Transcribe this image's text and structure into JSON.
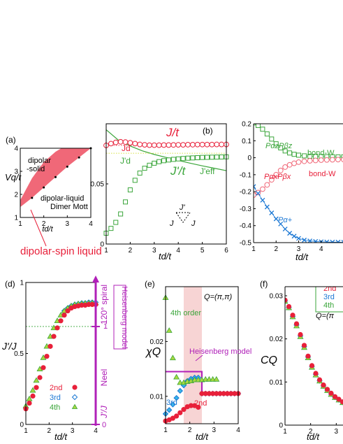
{
  "colors": {
    "red": "#e8203a",
    "green": "#3aa53a",
    "blue": "#1c78d4",
    "lightblue": "#38b6e8",
    "purple": "#b020b8",
    "pink": "#f06878",
    "shade": "#f7d4d4",
    "yellowgreen": "#a8d840"
  },
  "chart_data": [
    {
      "panel": "(a)",
      "type": "area",
      "xlabel": "td/t",
      "ylabel": "Vq/t",
      "xlim": [
        1,
        4
      ],
      "ylim": [
        1,
        4
      ],
      "xticks": [
        "1",
        "2",
        "3",
        "4"
      ],
      "yticks": [
        "1",
        "2",
        "3",
        "4"
      ],
      "region_labels": [
        "dipolar",
        "-solid",
        "dipolar-liquid",
        "Dimer Mott"
      ],
      "annotation": "dipolar-spin liquid",
      "boundary_lower": {
        "x": [
          1.0,
          1.5,
          2.0,
          2.5,
          3.0,
          3.5,
          4.0
        ],
        "y": [
          1.45,
          1.85,
          2.3,
          2.75,
          3.2,
          3.6,
          4.0
        ]
      },
      "boundary_upper": {
        "x": [
          1.0,
          1.5,
          2.0,
          2.5,
          2.75
        ],
        "y": [
          1.75,
          2.7,
          3.4,
          3.85,
          4.0
        ]
      }
    },
    {
      "panel": "(b)",
      "type": "line",
      "xlabel": "td/t",
      "xlim": [
        1,
        6
      ],
      "ylim": [
        0,
        0.1
      ],
      "xticks": [
        "1",
        "2",
        "3",
        "4",
        "5",
        "6"
      ],
      "yticks": [
        "0",
        "0.05"
      ],
      "labels": {
        "Jt": "J/t",
        "Jpt": "J'/t",
        "Jd": "Jd",
        "Jpd": "J'd",
        "Jeff": "J'eff",
        "tri_top": "J'",
        "tri_left": "J",
        "tri_right": "J"
      },
      "series": [
        {
          "name": "J/t",
          "x": [
            1.0,
            1.2,
            1.4,
            1.6,
            1.8,
            2.0,
            2.2,
            2.4,
            2.6,
            2.8,
            3.0,
            3.2,
            3.4,
            3.6,
            3.8,
            4.0,
            4.2,
            4.4,
            4.6,
            4.8,
            5.0,
            5.2,
            5.4,
            5.6,
            5.8,
            6.0
          ],
          "y": [
            0.082,
            0.0835,
            0.0845,
            0.085,
            0.0848,
            0.0842,
            0.0835,
            0.0828,
            0.0825,
            0.0822,
            0.0822,
            0.0822,
            0.0823,
            0.0823,
            0.0824,
            0.0825,
            0.0825,
            0.0826,
            0.0826,
            0.0827,
            0.0827,
            0.0827,
            0.0827,
            0.0828,
            0.0828,
            0.0828
          ]
        },
        {
          "name": "J'/t",
          "x": [
            1.0,
            1.2,
            1.4,
            1.6,
            1.8,
            2.0,
            2.2,
            2.4,
            2.6,
            2.8,
            3.0,
            3.2,
            3.4,
            3.6,
            3.8,
            4.0,
            4.2,
            4.4,
            4.6,
            4.8,
            5.0,
            5.2,
            5.4,
            5.6,
            5.8,
            6.0
          ],
          "y": [
            0.009,
            0.013,
            0.018,
            0.025,
            0.035,
            0.045,
            0.053,
            0.059,
            0.063,
            0.0655,
            0.0672,
            0.0685,
            0.0693,
            0.0699,
            0.0704,
            0.0708,
            0.0711,
            0.0714,
            0.0716,
            0.0718,
            0.072,
            0.0721,
            0.0722,
            0.0723,
            0.0724,
            0.0725
          ]
        },
        {
          "name": "J'eff",
          "x": [
            1.0,
            1.5,
            2.0,
            2.5,
            3.0,
            3.5,
            4.0,
            4.5,
            5.0,
            5.5,
            6.0
          ],
          "y": [
            0.095,
            0.0865,
            0.0815,
            0.0775,
            0.0745,
            0.072,
            0.0695,
            0.0672,
            0.065,
            0.063,
            0.061
          ]
        },
        {
          "name": "Jd",
          "x": [
            1.0,
            6.0
          ],
          "y": [
            0.082,
            0.082
          ]
        },
        {
          "name": "J'd",
          "x": [
            1.0,
            6.0
          ],
          "y": [
            0.0755,
            0.0755
          ]
        }
      ]
    },
    {
      "panel": "(c)",
      "type": "line",
      "xlabel": "td/t",
      "xlim": [
        1,
        5
      ],
      "ylim": [
        -0.5,
        0.2
      ],
      "xticks": [
        "1",
        "2",
        "3",
        "4"
      ],
      "yticks": [
        "0.2",
        "0.1",
        "0",
        "-0.1",
        "-0.2",
        "-0.3",
        "-0.4",
        "-0.5"
      ],
      "labels": {
        "zz": "PαzPβz",
        "xx": "PαxPβx",
        "px": "Pα+",
        "bondg": "bond-W",
        "bondr": "bond-W"
      },
      "series": [
        {
          "name": "PzPz",
          "x": [
            1.0,
            1.2,
            1.4,
            1.6,
            1.8,
            2.0,
            2.2,
            2.4,
            2.6,
            2.8,
            3.0,
            3.25,
            3.5,
            3.75,
            4.0,
            4.25,
            4.5,
            4.75,
            5.0
          ],
          "y": [
            0.205,
            0.19,
            0.168,
            0.14,
            0.11,
            0.082,
            0.058,
            0.04,
            0.028,
            0.02,
            0.015,
            0.011,
            0.009,
            0.008,
            0.007,
            0.006,
            0.006,
            0.005,
            0.005
          ]
        },
        {
          "name": "PxPx",
          "x": [
            1.0,
            1.2,
            1.4,
            1.6,
            1.8,
            2.0,
            2.2,
            2.4,
            2.6,
            2.8,
            3.0,
            3.25,
            3.5,
            3.75,
            4.0,
            4.25,
            4.5,
            4.75,
            5.0
          ],
          "y": [
            -0.22,
            -0.205,
            -0.185,
            -0.16,
            -0.13,
            -0.1,
            -0.075,
            -0.055,
            -0.042,
            -0.033,
            -0.026,
            -0.021,
            -0.018,
            -0.016,
            -0.014,
            -0.013,
            -0.012,
            -0.011,
            -0.011
          ]
        },
        {
          "name": "P+",
          "x": [
            1.0,
            1.2,
            1.4,
            1.6,
            1.8,
            2.0,
            2.2,
            2.4,
            2.6,
            2.8,
            3.0,
            3.25,
            3.5,
            3.75,
            4.0,
            4.25,
            4.5,
            4.75,
            5.0
          ],
          "y": [
            -0.17,
            -0.21,
            -0.25,
            -0.29,
            -0.325,
            -0.36,
            -0.39,
            -0.42,
            -0.445,
            -0.462,
            -0.475,
            -0.485,
            -0.49,
            -0.493,
            -0.495,
            -0.496,
            -0.497,
            -0.497,
            -0.498
          ]
        }
      ]
    },
    {
      "panel": "(d)",
      "type": "scatter",
      "xlabel": "td/t",
      "ylabel": "J'/J",
      "xlim": [
        1,
        4
      ],
      "ylim": [
        0,
        1
      ],
      "xticks": [
        "1",
        "2",
        "3",
        "4"
      ],
      "yticks": [
        "0",
        "0.5",
        "1"
      ],
      "right_axis": {
        "label": "J'/J",
        "ticks": [
          "0",
          "1"
        ],
        "neel": "Neel",
        "spiral": "120° spiral",
        "model": "Heisenberg model"
      },
      "legend": [
        "2nd",
        "3rd",
        "4th"
      ],
      "series": [
        {
          "name": "2nd",
          "x": [
            1.0,
            1.15,
            1.3,
            1.45,
            1.6,
            1.75,
            1.9,
            2.05,
            2.2,
            2.35,
            2.5,
            2.65,
            2.8,
            2.95,
            3.1,
            3.25,
            3.4,
            3.55,
            3.7,
            3.85,
            4.0
          ],
          "y": [
            0.11,
            0.15,
            0.2,
            0.26,
            0.33,
            0.4,
            0.48,
            0.55,
            0.62,
            0.68,
            0.73,
            0.77,
            0.8,
            0.82,
            0.83,
            0.835,
            0.84,
            0.84,
            0.845,
            0.845,
            0.845
          ]
        },
        {
          "name": "3rd",
          "x": [
            2.65,
            2.8,
            2.95,
            3.1,
            3.25,
            3.4,
            3.55,
            3.7,
            3.85,
            4.0
          ],
          "y": [
            0.8,
            0.82,
            0.835,
            0.845,
            0.85,
            0.855,
            0.855,
            0.86,
            0.86,
            0.86
          ]
        },
        {
          "name": "4th",
          "x": [
            1.0,
            1.15,
            1.3,
            1.45,
            1.6,
            1.75,
            1.9,
            2.05,
            2.2,
            2.35,
            2.5,
            2.65,
            2.8,
            2.95,
            3.1,
            3.25,
            3.4,
            3.55,
            3.7,
            3.85,
            4.0
          ],
          "y": [
            0.13,
            0.18,
            0.24,
            0.31,
            0.39,
            0.47,
            0.55,
            0.62,
            0.68,
            0.73,
            0.77,
            0.8,
            0.82,
            0.835,
            0.845,
            0.85,
            0.852,
            0.854,
            0.855,
            0.856,
            0.856
          ]
        }
      ]
    },
    {
      "panel": "(e)",
      "type": "scatter",
      "xlabel": "td/t",
      "ylabel": "χQ",
      "xlim": [
        1,
        4
      ],
      "ylim": [
        0.005,
        0.03
      ],
      "xticks": [
        "1",
        "2",
        "3",
        "4"
      ],
      "yticks": [
        "0.01",
        "0.02"
      ],
      "annotations": {
        "q": "Q=(π,π)",
        "order4": "4th order",
        "model": "Heisenberg model",
        "label2": "2nd",
        "label3": "3rd"
      },
      "shade_x": [
        1.75,
        2.5
      ],
      "series": [
        {
          "name": "2nd",
          "x": [
            1.0,
            1.15,
            1.3,
            1.45,
            1.6,
            1.75,
            1.9,
            2.05,
            2.2,
            2.35,
            2.5,
            2.65,
            2.8,
            2.95,
            3.1,
            3.25,
            3.4,
            3.55,
            3.7,
            3.85,
            4.0
          ],
          "y": [
            0.0055,
            0.0057,
            0.006,
            0.0064,
            0.007,
            0.0076,
            0.0081,
            0.0083,
            0.0083,
            0.008,
            0.0105,
            0.0105,
            0.0105,
            0.0105,
            0.0105,
            0.0105,
            0.0105,
            0.0105,
            0.0105,
            0.0105,
            0.0105
          ]
        },
        {
          "name": "3rd",
          "x": [
            1.0,
            1.15,
            1.3,
            1.45,
            1.6,
            1.75,
            1.9,
            2.05,
            2.2,
            2.35,
            2.5,
            2.65,
            2.8,
            2.95,
            3.1,
            3.25,
            3.4,
            3.55,
            3.7,
            3.85,
            4.0
          ],
          "y": [
            0.0068,
            0.0075,
            0.0085,
            0.0097,
            0.011,
            0.012,
            0.0128,
            0.0132,
            0.0134,
            0.0134,
            0.0105,
            0.0105,
            0.0105,
            0.0105,
            0.0105,
            0.0105,
            0.0105,
            0.0105,
            0.0105,
            0.0105,
            0.0105
          ]
        },
        {
          "name": "4th",
          "x": [
            1.0,
            1.15,
            1.3,
            1.45,
            1.6,
            1.75,
            1.9,
            2.05,
            2.2,
            2.35,
            2.5,
            2.65,
            2.8,
            2.95,
            3.1
          ],
          "y": [
            0.028,
            0.022,
            0.017,
            0.0135,
            0.0125,
            0.0125,
            0.0127,
            0.0128,
            0.013,
            0.013,
            0.013,
            0.0131,
            0.0131,
            0.0131,
            0.0131
          ]
        },
        {
          "name": "Heisenberg model",
          "x": [
            1.0,
            2.5,
            2.5,
            4.0
          ],
          "y": [
            0.0145,
            0.0145,
            0.0105,
            0.0105
          ]
        }
      ]
    },
    {
      "panel": "(f)",
      "type": "scatter",
      "xlabel": "td/t",
      "ylabel": "CQ",
      "xlim": [
        1,
        4
      ],
      "ylim": [
        0,
        0.03
      ],
      "xticks": [
        "1",
        "2",
        "3"
      ],
      "yticks": [
        "0",
        "0.01",
        "0.02",
        "0.03"
      ],
      "legend": [
        "2nd",
        "3rd",
        "4th"
      ],
      "annotation": "Q=(π",
      "series": [
        {
          "name": "2nd",
          "x": [
            1.0,
            1.15,
            1.3,
            1.45,
            1.6,
            1.75,
            1.9,
            2.05,
            2.2,
            2.35,
            2.5,
            2.65,
            2.8,
            2.95,
            3.1,
            3.25,
            3.4,
            3.55,
            3.7,
            3.85,
            4.0
          ],
          "y": [
            0.029,
            0.0275,
            0.0255,
            0.0235,
            0.021,
            0.0185,
            0.016,
            0.0138,
            0.012,
            0.0105,
            0.0093,
            0.0083,
            0.0074,
            0.0066,
            0.006,
            0.0054,
            0.005,
            0.0046,
            0.0043,
            0.004,
            0.0038
          ]
        },
        {
          "name": "3rd",
          "x": [
            1.0,
            1.15,
            1.3,
            1.45,
            1.6,
            1.75,
            1.9,
            2.05,
            2.2,
            2.35,
            2.5,
            2.65,
            2.8,
            2.95,
            3.1,
            3.25,
            3.4,
            3.55,
            3.7,
            3.85,
            4.0
          ],
          "y": [
            0.0288,
            0.0273,
            0.0252,
            0.0232,
            0.0207,
            0.0182,
            0.0158,
            0.0136,
            0.0118,
            0.0103,
            0.0091,
            0.0081,
            0.0072,
            0.0065,
            0.0059,
            0.0053,
            0.0049,
            0.0045,
            0.0042,
            0.004,
            0.0037
          ]
        },
        {
          "name": "4th",
          "x": [
            1.0,
            1.15,
            1.3,
            1.45,
            1.6,
            1.75,
            1.9,
            2.05,
            2.2,
            2.35,
            2.5,
            2.65,
            2.8,
            2.95,
            3.1,
            3.25,
            3.4,
            3.55,
            3.7,
            3.85,
            4.0
          ],
          "y": [
            0.0287,
            0.0272,
            0.0251,
            0.023,
            0.0205,
            0.018,
            0.0156,
            0.0134,
            0.0116,
            0.0102,
            0.009,
            0.008,
            0.0071,
            0.0064,
            0.0058,
            0.0052,
            0.0048,
            0.0045,
            0.0042,
            0.0039,
            0.0037
          ]
        }
      ]
    }
  ]
}
